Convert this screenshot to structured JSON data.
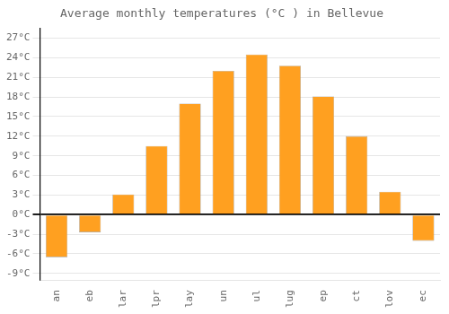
{
  "chart_data": {
    "type": "bar",
    "title": "Average monthly temperatures (°C ) in Bellevue",
    "categories": [
      "an",
      "eb",
      "lar",
      "lpr",
      "lay",
      "un",
      "ul",
      "lug",
      "ep",
      "ct",
      "lov",
      "ec"
    ],
    "values": [
      -6.5,
      -2.7,
      3.1,
      10.5,
      17.0,
      22.0,
      24.5,
      22.8,
      18.1,
      12.0,
      3.5,
      -4.0
    ],
    "color": "#FFA020",
    "ylim": [
      -10,
      28.5
    ],
    "yticks": [
      {
        "value": -9,
        "label": "-9°C"
      },
      {
        "value": -6,
        "label": "-6°C"
      },
      {
        "value": -3,
        "label": "-3°C"
      },
      {
        "value": 0,
        "label": "0°C"
      },
      {
        "value": 3,
        "label": "3°C"
      },
      {
        "value": 6,
        "label": "6°C"
      },
      {
        "value": 9,
        "label": "9°C"
      },
      {
        "value": 12,
        "label": "12°C"
      },
      {
        "value": 15,
        "label": "15°C"
      },
      {
        "value": 18,
        "label": "18°C"
      },
      {
        "value": 21,
        "label": "21°C"
      },
      {
        "value": 24,
        "label": "24°C"
      },
      {
        "value": 27,
        "label": "27°C"
      }
    ],
    "grid": true
  }
}
